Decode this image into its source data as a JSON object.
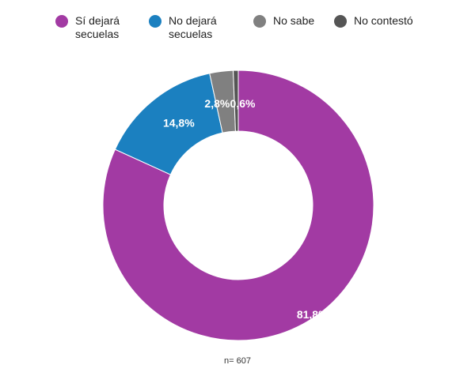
{
  "chart_data": {
    "type": "pie",
    "variant": "donut",
    "title": "",
    "legend_position": "top",
    "series": [
      {
        "name": "Sí dejará\nsecuelas",
        "value": 81.8,
        "label": "81,8%",
        "color": "#a23aa3"
      },
      {
        "name": "No dejará\nsecuelas",
        "value": 14.8,
        "label": "14,8%",
        "color": "#1b80c0"
      },
      {
        "name": "No sabe",
        "value": 2.8,
        "label": "2,8%",
        "color": "#808080"
      },
      {
        "name": "No contestó",
        "value": 0.6,
        "label": "0,6%",
        "color": "#555555"
      }
    ],
    "note": "n= 607"
  }
}
